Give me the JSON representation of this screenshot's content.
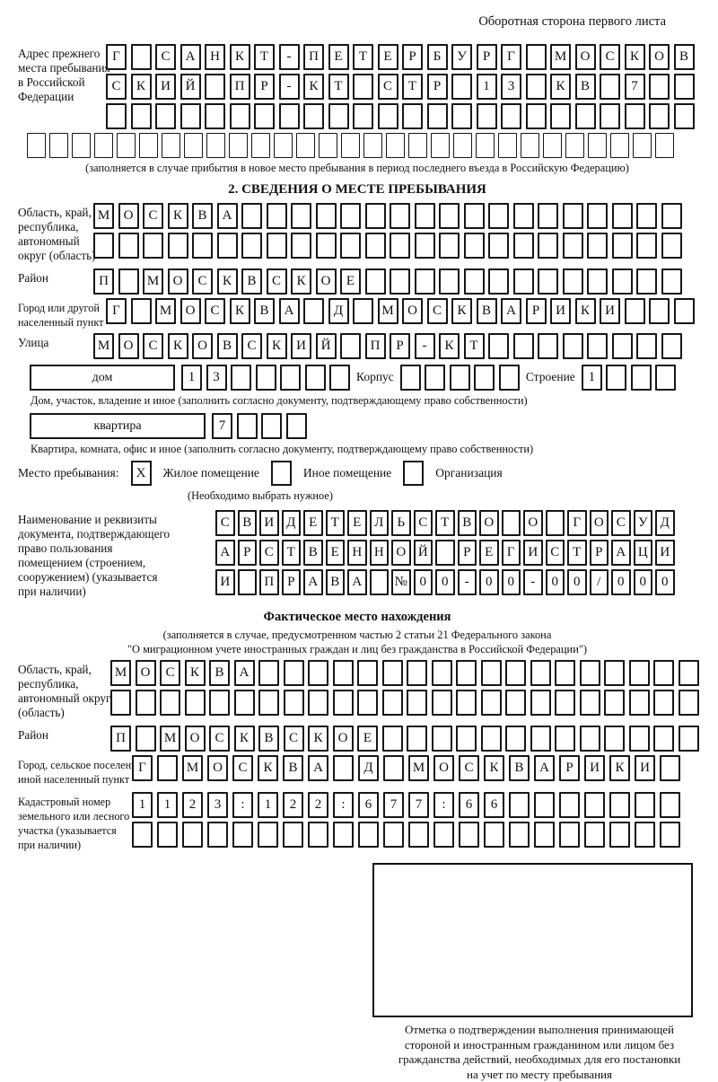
{
  "ink_color": "#111111",
  "header": {
    "note": "Оборотная сторона первого листа"
  },
  "prev_address": {
    "label": "Адрес прежнего\nместа пребывания\nв Российской\nФедерации",
    "rows": [
      {
        "cells": 24,
        "value": "Г САНКТ-ПЕТЕРБУРГ МОСКОВ"
      },
      {
        "cells": 24,
        "value": "СКИЙ ПР-КТ СТР 13 КВ 7"
      },
      {
        "cells": 24,
        "value": ""
      },
      {
        "cells": 29,
        "value": ""
      }
    ],
    "note": "(заполняется в случае прибытия в новое место пребывания в период последнего въезда в Российскую Федерацию)"
  },
  "section2": {
    "title": "2. СВЕДЕНИЯ О МЕСТЕ ПРЕБЫВАНИЯ",
    "region": {
      "label": "Область, край,\nреспублика,\nавтономный\nокруг (область)",
      "rows": [
        {
          "cells": 24,
          "value": "МОСКВА"
        },
        {
          "cells": 24,
          "value": ""
        }
      ]
    },
    "district": {
      "label": "Район",
      "row": {
        "cells": 24,
        "value": "П МОСКВСКОЕ"
      }
    },
    "city": {
      "label": "Город или другой\nнаселенный пункт",
      "row": {
        "cells": 24,
        "value": "Г МОСКВА Д МОСКВАРИКИ"
      }
    },
    "street": {
      "label": "Улица",
      "row": {
        "cells": 24,
        "value": "МОСКОВСКИЙ ПР-КТ"
      }
    },
    "house": {
      "box_label": "дом",
      "row": {
        "cells": 7,
        "value": "13"
      },
      "korpus_label": "Корпус",
      "korpus_row": {
        "cells": 5,
        "value": ""
      },
      "stroenie_label": "Строение",
      "stroenie_row": {
        "cells": 4,
        "value": "1"
      },
      "note": "Дом, участок, владение и иное (заполнить согласно документу, подтверждающему право собственности)"
    },
    "apartment": {
      "box_label": "квартира",
      "row": {
        "cells": 4,
        "value": "7"
      },
      "note": "Квартира, комната, офис и иное (заполнить согласно документу, подтверждающему право собственности)"
    },
    "stay_type": {
      "label": "Место пребывания:",
      "options": [
        {
          "label": "Жилое помещение",
          "mark": "X"
        },
        {
          "label": "Иное помещение",
          "mark": ""
        },
        {
          "label": "Организация",
          "mark": ""
        }
      ],
      "note": "(Необходимо выбрать нужное)"
    },
    "document": {
      "label": "Наименование и реквизиты\nдокумента, подтверждающего\nправо пользования\nпомещением (строением,\nсооружением) (указывается\nпри наличии)",
      "rows": [
        {
          "cells": 21,
          "value": "СВИДЕТЕЛЬСТВО О ГОСУД"
        },
        {
          "cells": 21,
          "value": "АРСТВЕННОЙ РЕГИСТРАЦИ"
        },
        {
          "cells": 21,
          "value": "И ПРАВА №00-00-00/000"
        }
      ]
    }
  },
  "actual_location": {
    "title": "Фактическое место нахождения",
    "note_line1": "(заполняется в случае, предусмотренном частью 2 статьи 21 Федерального закона",
    "note_line2": "\"О миграционном учете иностранных граждан и лиц без гражданства в Российской Федерации\")",
    "region": {
      "label": "Область, край,\nреспублика,\nавтономный округ\n(область)",
      "rows": [
        {
          "cells": 24,
          "value": "МОСКВА"
        },
        {
          "cells": 24,
          "value": ""
        }
      ]
    },
    "district": {
      "label": "Район",
      "row": {
        "cells": 24,
        "value": "П МОСКВСКОЕ"
      }
    },
    "city": {
      "label": "Город, сельское поселение,\nиной населенный пункт",
      "row": {
        "cells": 22,
        "value": "Г МОСКВА Д МОСКВАРИКИ"
      }
    },
    "cadastral": {
      "label": "Кадастровый номер\nземельного или лесного\nучастка (указывается\nпри наличии)",
      "rows": [
        {
          "cells": 22,
          "value": "1123:122:677:66"
        },
        {
          "cells": 22,
          "value": ""
        }
      ]
    },
    "stamp_note": "Отметка о подтверждении выполнения принимающей\nстороной и иностранным гражданином или лицом без\nгражданства действий, необходимых для его постановки\nна учет по месту пребывания"
  }
}
